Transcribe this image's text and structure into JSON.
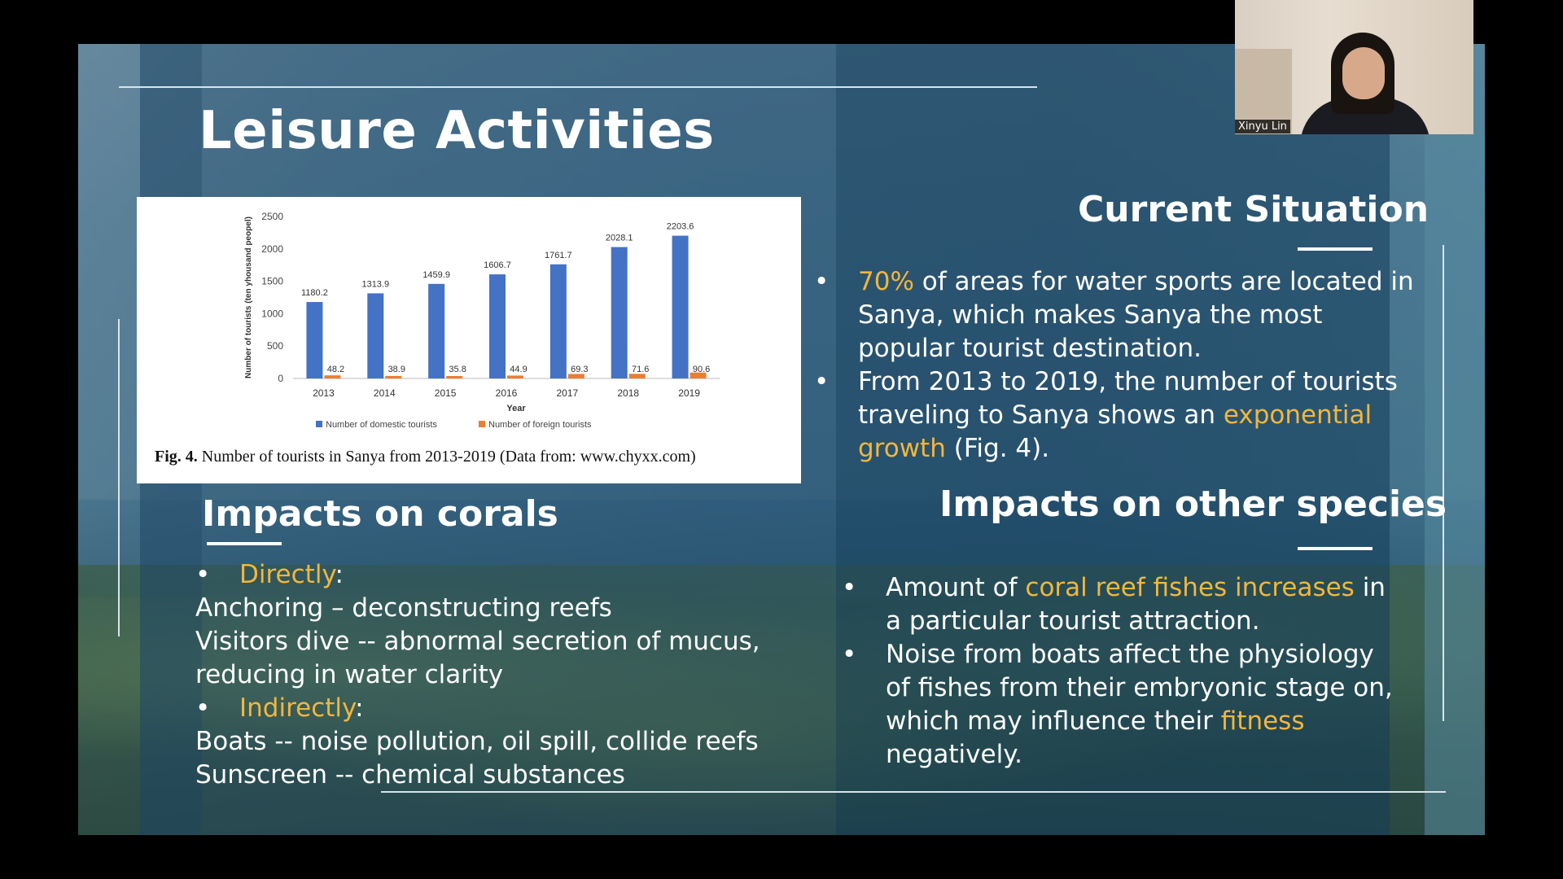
{
  "slide": {
    "title": "Leisure Activities",
    "figure_caption_label": "Fig. 4.",
    "figure_caption_text": "Number of tourists in Sanya from 2013-2019 (Data from: www.chyxx.com)"
  },
  "chart_data": {
    "type": "bar",
    "categories": [
      "2013",
      "2014",
      "2015",
      "2016",
      "2017",
      "2018",
      "2019"
    ],
    "series": [
      {
        "name": "Number of domestic tourists",
        "values": [
          1180.2,
          1313.9,
          1459.9,
          1606.7,
          1761.7,
          2028.1,
          2203.6
        ],
        "color": "#4472c4"
      },
      {
        "name": "Number of foreign tourists",
        "values": [
          48.2,
          38.9,
          35.8,
          44.9,
          69.3,
          71.6,
          90.6
        ],
        "color": "#ed7d31"
      }
    ],
    "xlabel": "Year",
    "ylabel": "Number of tourists (ten yhousand peopel)",
    "ylim": [
      0,
      2500
    ],
    "yticks": [
      "0",
      "500",
      "1000",
      "1500",
      "2000",
      "2500"
    ],
    "legend_position": "bottom"
  },
  "current_situation": {
    "heading": "Current Situation",
    "bullet1_hl": "70%",
    "bullet1_line1": " of areas for water sports are located in",
    "bullet1_line2": "Sanya, which makes Sanya the most",
    "bullet1_line3": "popular tourist destination.",
    "bullet2_line1": "From 2013 to 2019, the number of tourists",
    "bullet2_line2a": "traveling to Sanya shows an ",
    "bullet2_hl1": "exponential",
    "bullet2_hl2": "growth",
    "bullet2_line3b": " (Fig. 4)."
  },
  "impacts_corals": {
    "heading": "Impacts on corals",
    "directly_label": "Directly",
    "directly_colon": ":",
    "line1": "Anchoring – deconstructing reefs",
    "line2": "Visitors dive -- abnormal secretion of mucus,",
    "line3": "reducing in water clarity",
    "indirectly_label": "Indirectly",
    "indirectly_colon": ":",
    "line4": "Boats -- noise pollution, oil spill, collide reefs",
    "line5": "Sunscreen -- chemical substances"
  },
  "impacts_species": {
    "heading": "Impacts on other species",
    "b1_a": "Amount of ",
    "b1_hl": "coral reef fishes increases",
    "b1_b": " in",
    "b1_line2": "a particular tourist attraction.",
    "b2_line1": "Noise from boats affect the physiology",
    "b2_line2": "of fishes from their embryonic stage on,",
    "b2_line3a": "which may influence their ",
    "b2_hl": "fitness",
    "b2_line4": "negatively."
  },
  "bullet_glyph": "•",
  "webcam": {
    "participant_name": "Xinyu Lin"
  }
}
